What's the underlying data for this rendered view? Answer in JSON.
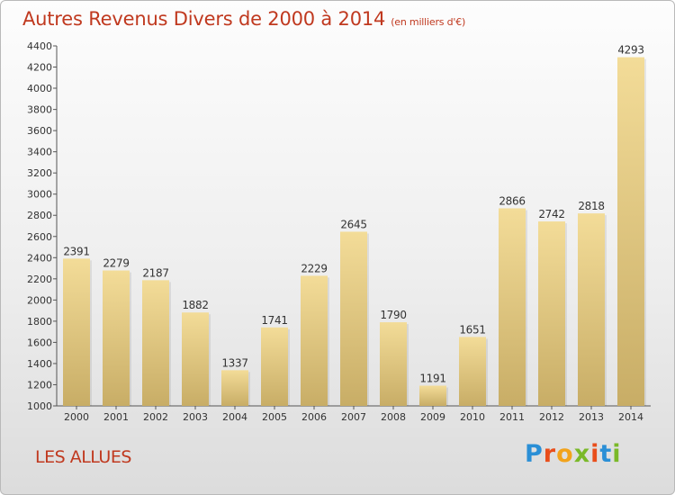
{
  "header": {
    "title": "Autres Revenus Divers de 2000 à 2014",
    "unit": "(en milliers d'€)"
  },
  "footer": {
    "commune": "LES ALLUES"
  },
  "logo": {
    "text": "Proxiti",
    "colors": [
      "#2a8fd6",
      "#e94e1b",
      "#f2a31b",
      "#7ab929",
      "#e94e1b",
      "#2a8fd6",
      "#7ab929"
    ]
  },
  "colors": {
    "bar_top": "#f3dc98",
    "bar_bottom": "#c8ad66",
    "text": "#c0391f",
    "axis": "#555555"
  },
  "chart_data": {
    "type": "bar",
    "title": "Autres Revenus Divers de 2000 à 2014",
    "subtitle": "(en milliers d'€)",
    "categories": [
      "2000",
      "2001",
      "2002",
      "2003",
      "2004",
      "2005",
      "2006",
      "2007",
      "2008",
      "2009",
      "2010",
      "2011",
      "2012",
      "2013",
      "2014"
    ],
    "values": [
      2391,
      2279,
      2187,
      1882,
      1337,
      1741,
      2229,
      2645,
      1790,
      1191,
      1651,
      2866,
      2742,
      2818,
      4293
    ],
    "ylim": [
      1000,
      4400
    ],
    "yticks": [
      1000,
      1200,
      1400,
      1600,
      1800,
      2000,
      2200,
      2400,
      2600,
      2800,
      3000,
      3200,
      3400,
      3600,
      3800,
      4000,
      4200,
      4400
    ],
    "grid": false,
    "data_labels": true
  }
}
